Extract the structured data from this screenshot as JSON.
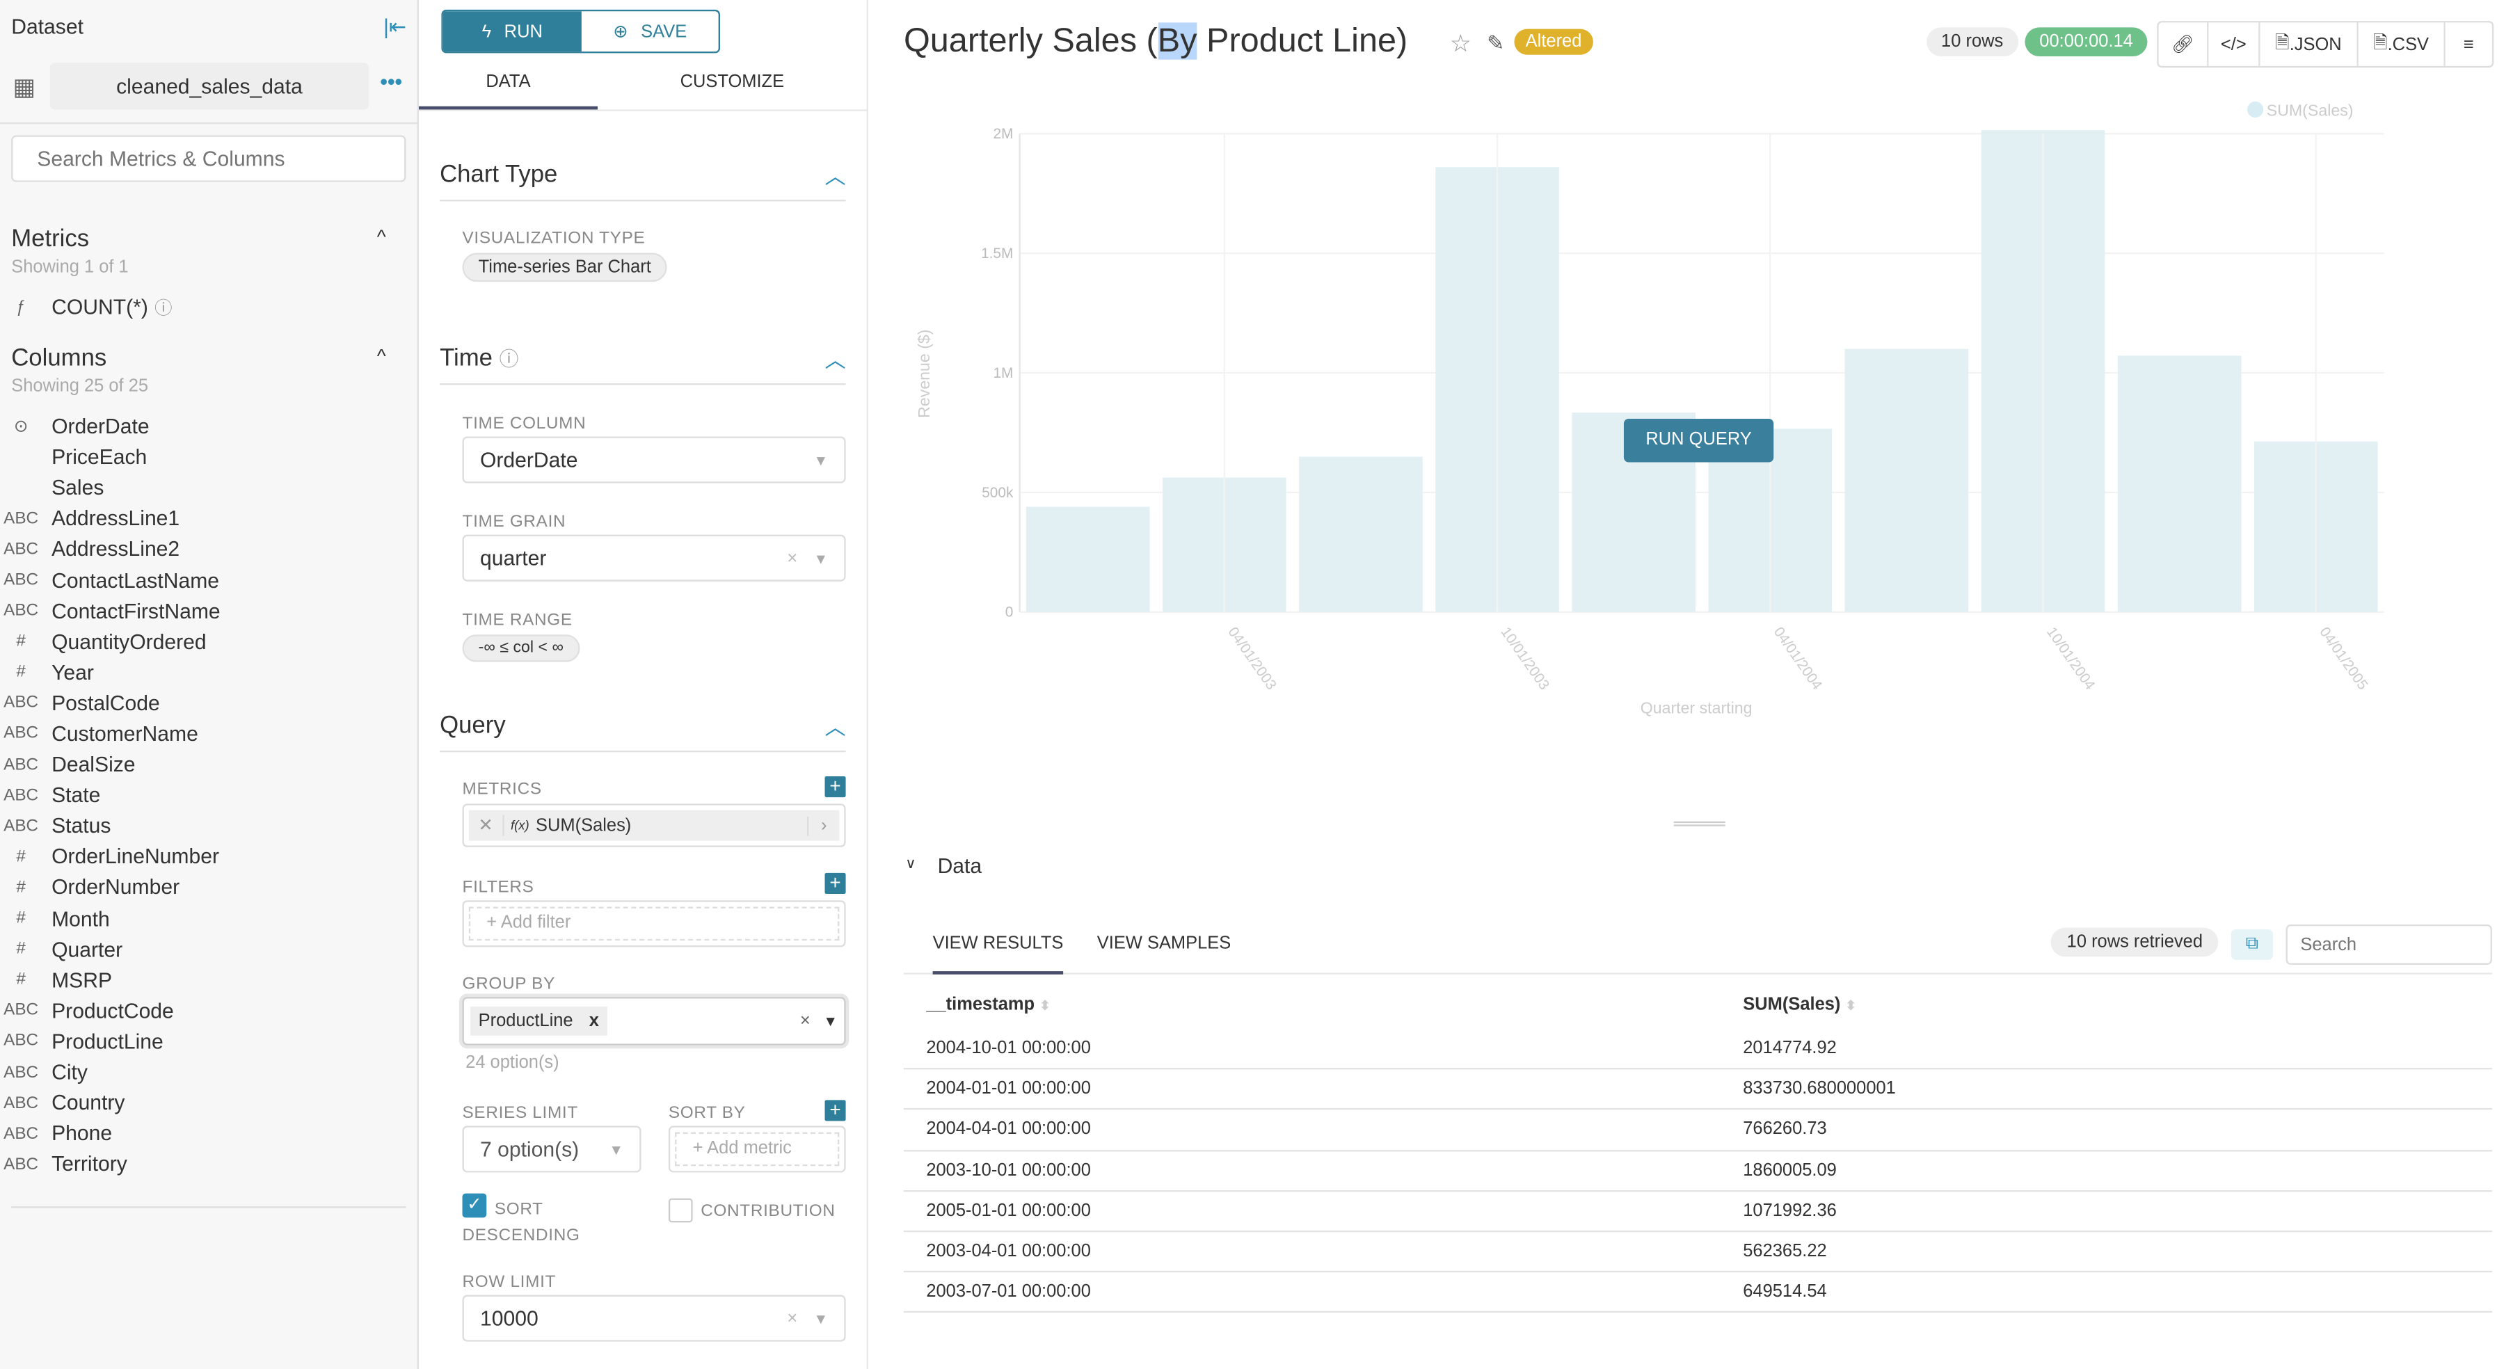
{
  "sidebar": {
    "title": "Dataset",
    "dataset_name": "cleaned_sales_data",
    "search_placeholder": "Search Metrics & Columns",
    "metrics_title": "Metrics",
    "metrics_showing": "Showing 1 of 1",
    "metrics": [
      {
        "type": "ƒ",
        "name": "COUNT(*)"
      }
    ],
    "columns_title": "Columns",
    "columns_showing": "Showing 25 of 25",
    "columns": [
      {
        "type": "clock",
        "name": "OrderDate"
      },
      {
        "type": "",
        "name": "PriceEach"
      },
      {
        "type": "",
        "name": "Sales"
      },
      {
        "type": "ABC",
        "name": "AddressLine1"
      },
      {
        "type": "ABC",
        "name": "AddressLine2"
      },
      {
        "type": "ABC",
        "name": "ContactLastName"
      },
      {
        "type": "ABC",
        "name": "ContactFirstName"
      },
      {
        "type": "#",
        "name": "QuantityOrdered"
      },
      {
        "type": "#",
        "name": "Year"
      },
      {
        "type": "ABC",
        "name": "PostalCode"
      },
      {
        "type": "ABC",
        "name": "CustomerName"
      },
      {
        "type": "ABC",
        "name": "DealSize"
      },
      {
        "type": "ABC",
        "name": "State"
      },
      {
        "type": "ABC",
        "name": "Status"
      },
      {
        "type": "#",
        "name": "OrderLineNumber"
      },
      {
        "type": "#",
        "name": "OrderNumber"
      },
      {
        "type": "#",
        "name": "Month"
      },
      {
        "type": "#",
        "name": "Quarter"
      },
      {
        "type": "#",
        "name": "MSRP"
      },
      {
        "type": "ABC",
        "name": "ProductCode"
      },
      {
        "type": "ABC",
        "name": "ProductLine"
      },
      {
        "type": "ABC",
        "name": "City"
      },
      {
        "type": "ABC",
        "name": "Country"
      },
      {
        "type": "ABC",
        "name": "Phone"
      },
      {
        "type": "ABC",
        "name": "Territory"
      }
    ]
  },
  "controls": {
    "run": "RUN",
    "save": "SAVE",
    "tabs": [
      "DATA",
      "CUSTOMIZE"
    ],
    "chart_type": {
      "title": "Chart Type",
      "viz_label": "VISUALIZATION TYPE",
      "viz_value": "Time-series Bar Chart"
    },
    "time": {
      "title": "Time",
      "column_label": "TIME COLUMN",
      "column_value": "OrderDate",
      "grain_label": "TIME GRAIN",
      "grain_value": "quarter",
      "range_label": "TIME RANGE",
      "range_value": "-∞ ≤ col < ∞"
    },
    "query": {
      "title": "Query",
      "metrics_label": "METRICS",
      "metric_value": "SUM(Sales)",
      "metric_fx": "f(x)",
      "filters_label": "FILTERS",
      "add_filter": "Add filter",
      "groupby_label": "GROUP BY",
      "groupby_value": "ProductLine",
      "groupby_options": "24 option(s)",
      "series_limit_label": "SERIES LIMIT",
      "series_limit_value": "7 option(s)",
      "sortby_label": "SORT BY",
      "add_metric": "Add metric",
      "sort_desc_label": "SORT DESCENDING",
      "sort_desc_checked": true,
      "contribution_label": "CONTRIBUTION",
      "contribution_checked": false,
      "row_limit_label": "ROW LIMIT",
      "row_limit_value": "10000"
    }
  },
  "header": {
    "title_pre": "Quarterly Sales (",
    "title_sel": "By",
    "title_post": " Product Line)",
    "altered": "Altered",
    "rows": "10 rows",
    "duration": "00:00:00.14",
    "json": ".JSON",
    "csv": ".CSV"
  },
  "colors": {
    "accent": "#2f7f9b",
    "bar": "#e2f0f4",
    "altered": "#e0b22c",
    "duration": "#6fc18a"
  },
  "run_query": "RUN QUERY",
  "chart_data": {
    "type": "bar",
    "x": [
      "2003-01-01",
      "2003-04-01",
      "2003-07-01",
      "2003-10-01",
      "2004-01-01",
      "2004-04-01",
      "2004-07-01",
      "2004-10-01",
      "2005-01-01",
      "2005-04-01"
    ],
    "series": [
      {
        "name": "SUM(Sales)",
        "values": [
          440000,
          562365.22,
          649514.54,
          1860005.09,
          833730.68,
          766260.73,
          1100000,
          2014774.92,
          1071992.36,
          713000
        ]
      }
    ],
    "xlabel": "Quarter starting",
    "ylabel": "Revenue ($)",
    "ylim": [
      0,
      2000000
    ],
    "yticks": [
      "0",
      "500k",
      "1M",
      "1.5M",
      "2M"
    ],
    "xticks": [
      "04/01/2003",
      "10/01/2003",
      "04/01/2004",
      "10/01/2004",
      "04/01/2005"
    ],
    "legend": "top-right",
    "grid": true
  },
  "data_panel": {
    "title": "Data",
    "tabs": [
      "VIEW RESULTS",
      "VIEW SAMPLES"
    ],
    "retrieved": "10 rows retrieved",
    "search_placeholder": "Search",
    "headers": [
      "__timestamp",
      "SUM(Sales)"
    ],
    "rows": [
      [
        "2004-10-01 00:00:00",
        "2014774.92"
      ],
      [
        "2004-01-01 00:00:00",
        "833730.680000001"
      ],
      [
        "2004-04-01 00:00:00",
        "766260.73"
      ],
      [
        "2003-10-01 00:00:00",
        "1860005.09"
      ],
      [
        "2005-01-01 00:00:00",
        "1071992.36"
      ],
      [
        "2003-04-01 00:00:00",
        "562365.22"
      ],
      [
        "2003-07-01 00:00:00",
        "649514.54"
      ]
    ]
  }
}
